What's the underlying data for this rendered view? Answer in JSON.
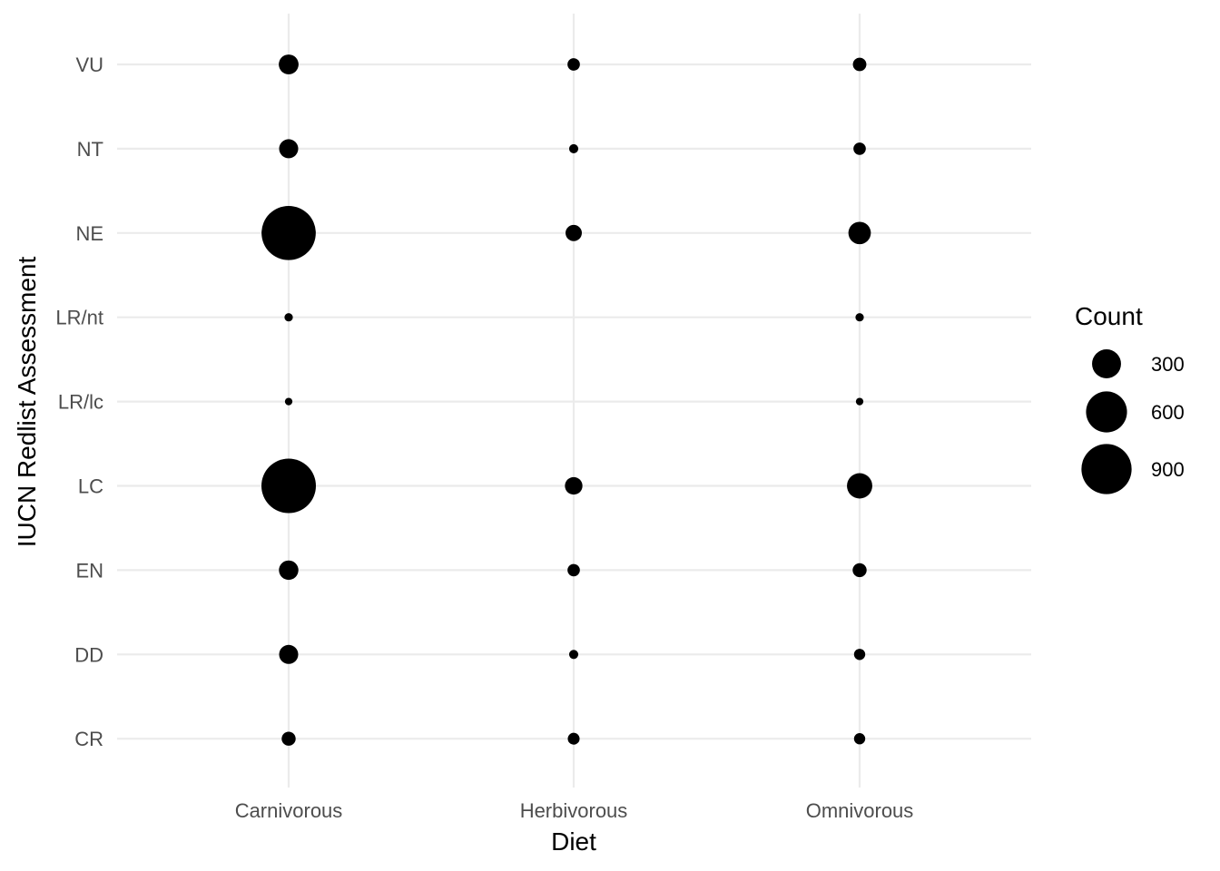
{
  "chart_data": {
    "type": "scatter",
    "subtype": "bubble",
    "xlabel": "Diet",
    "ylabel": "IUCN Redlist Assessment",
    "categories_x": [
      "Carnivorous",
      "Herbivorous",
      "Omnivorous"
    ],
    "categories_y": [
      "CR",
      "DD",
      "EN",
      "LC",
      "LR/lc",
      "LR/nt",
      "NE",
      "NT",
      "VU"
    ],
    "points": [
      {
        "x": "Carnivorous",
        "y": "VU",
        "count": 140
      },
      {
        "x": "Carnivorous",
        "y": "NT",
        "count": 130
      },
      {
        "x": "Carnivorous",
        "y": "NE",
        "count": 1050
      },
      {
        "x": "Carnivorous",
        "y": "LR/nt",
        "count": 25
      },
      {
        "x": "Carnivorous",
        "y": "LR/lc",
        "count": 20
      },
      {
        "x": "Carnivorous",
        "y": "LC",
        "count": 1060
      },
      {
        "x": "Carnivorous",
        "y": "EN",
        "count": 135
      },
      {
        "x": "Carnivorous",
        "y": "DD",
        "count": 130
      },
      {
        "x": "Carnivorous",
        "y": "CR",
        "count": 70
      },
      {
        "x": "Herbivorous",
        "y": "VU",
        "count": 55
      },
      {
        "x": "Herbivorous",
        "y": "NT",
        "count": 30
      },
      {
        "x": "Herbivorous",
        "y": "NE",
        "count": 95
      },
      {
        "x": "Herbivorous",
        "y": "LC",
        "count": 110
      },
      {
        "x": "Herbivorous",
        "y": "EN",
        "count": 55
      },
      {
        "x": "Herbivorous",
        "y": "DD",
        "count": 30
      },
      {
        "x": "Herbivorous",
        "y": "CR",
        "count": 50
      },
      {
        "x": "Omnivorous",
        "y": "VU",
        "count": 65
      },
      {
        "x": "Omnivorous",
        "y": "NT",
        "count": 55
      },
      {
        "x": "Omnivorous",
        "y": "NE",
        "count": 180
      },
      {
        "x": "Omnivorous",
        "y": "LR/nt",
        "count": 25
      },
      {
        "x": "Omnivorous",
        "y": "LR/lc",
        "count": 20
      },
      {
        "x": "Omnivorous",
        "y": "LC",
        "count": 230
      },
      {
        "x": "Omnivorous",
        "y": "EN",
        "count": 70
      },
      {
        "x": "Omnivorous",
        "y": "DD",
        "count": 45
      },
      {
        "x": "Omnivorous",
        "y": "CR",
        "count": 45
      }
    ],
    "legend": {
      "title": "Count",
      "placement": "right",
      "breaks": [
        300,
        600,
        900
      ],
      "labels": [
        "300",
        "600",
        "900"
      ]
    },
    "grid": true,
    "marker_color": "#000000",
    "gridline_color": "#ebebeb"
  }
}
